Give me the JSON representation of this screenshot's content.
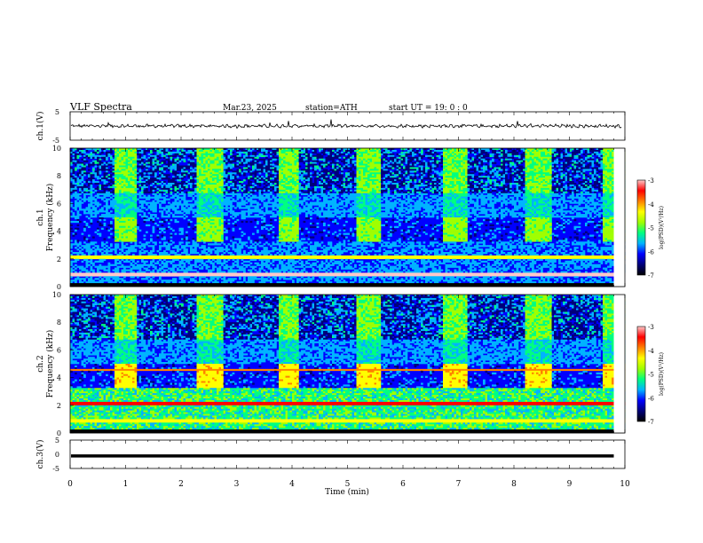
{
  "header": {
    "title": "VLF  Spectra",
    "date": "Mar.23, 2025",
    "station": "station=ATH",
    "start_ut": "start  UT  =    19: 0   : 0"
  },
  "chart_data": [
    {
      "type": "line",
      "name": "ch1-waveform",
      "ylabel": "ch.1(V)",
      "ylim": [
        -5,
        5
      ],
      "yticks": [
        "5",
        "-5"
      ],
      "xlim": [
        0,
        10
      ],
      "note_values": "amplitude near 0 V with small fluctuations and several brief spikes"
    },
    {
      "type": "heatmap",
      "name": "ch1-spectrogram",
      "ylabel": "ch.1\nFrequency  (kHz)",
      "ylim": [
        0,
        10
      ],
      "yticks": [
        "0",
        "2",
        "4",
        "6",
        "8",
        "10"
      ],
      "xlim": [
        0,
        10
      ],
      "colorbar": {
        "label": "log(PSD)(V²/Hz)",
        "range": [
          -7,
          -3
        ],
        "ticks": [
          "-3",
          "-4",
          "-5",
          "-6",
          "-7"
        ]
      },
      "pulse_windows_min": [
        [
          0.75,
          1.15
        ],
        [
          2.2,
          2.7
        ],
        [
          3.65,
          4.0
        ],
        [
          5.05,
          5.45
        ],
        [
          6.55,
          7.0
        ],
        [
          8.0,
          8.5
        ],
        [
          9.4,
          9.8
        ]
      ]
    },
    {
      "type": "heatmap",
      "name": "ch2-spectrogram",
      "ylabel": "ch.2\nFrequency  (kHz)",
      "ylim": [
        0,
        10
      ],
      "yticks": [
        "0",
        "2",
        "4",
        "6",
        "8",
        "10"
      ],
      "xlim": [
        0,
        10
      ],
      "colorbar": {
        "label": "log(PSD)(V²/Hz)",
        "range": [
          -7,
          -3
        ],
        "ticks": [
          "-3",
          "-4",
          "-5",
          "-6",
          "-7"
        ]
      },
      "pulse_windows_min": [
        [
          0.75,
          1.15
        ],
        [
          2.2,
          2.7
        ],
        [
          3.65,
          4.0
        ],
        [
          5.05,
          5.45
        ],
        [
          6.55,
          7.0
        ],
        [
          8.0,
          8.5
        ],
        [
          9.4,
          9.8
        ]
      ]
    },
    {
      "type": "line",
      "name": "ch3-waveform",
      "ylabel": "ch.3(V)",
      "ylim": [
        -5,
        5
      ],
      "yticks": [
        "5",
        "0",
        "-5"
      ],
      "xlim": [
        0,
        10
      ],
      "values_const_V": -0.6
    }
  ],
  "xaxis": {
    "label": "Time  (min)",
    "ticks": [
      "0",
      "1",
      "2",
      "3",
      "4",
      "5",
      "6",
      "7",
      "8",
      "9",
      "10"
    ]
  },
  "colors": {
    "scale": [
      "#000000",
      "#00007a",
      "#0000ff",
      "#00b4ff",
      "#00ff80",
      "#a0ff00",
      "#ffff00",
      "#ff8000",
      "#ff0000",
      "#ffc8c8"
    ]
  }
}
